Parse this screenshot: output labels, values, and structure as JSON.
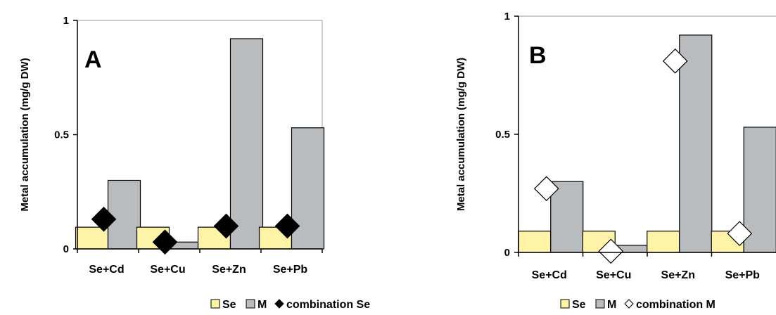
{
  "chart_data": [
    {
      "type": "bar",
      "panel_label": "A",
      "ylabel": "Metal accumulation (mg/g DW)",
      "xlabel": "",
      "ylim": [
        0,
        1
      ],
      "yticks": [
        "0",
        "0.5",
        "1"
      ],
      "categories": [
        "Se+Cd",
        "Se+Cu",
        "Se+Zn",
        "Se+Pb"
      ],
      "series": [
        {
          "name": "Se",
          "type": "bar",
          "color": "#FFF3A8",
          "values": [
            0.095,
            0.095,
            0.095,
            0.095
          ]
        },
        {
          "name": "M",
          "type": "bar",
          "color": "#B9BCBF",
          "values": [
            0.3,
            0.03,
            0.92,
            0.53
          ]
        },
        {
          "name": "combination Se",
          "type": "scatter",
          "marker": "filled-diamond",
          "color": "#000000",
          "values": [
            0.13,
            0.03,
            0.1,
            0.1
          ]
        }
      ],
      "legend": {
        "placement": "bottom",
        "entries": [
          "Se",
          "M",
          "combination Se"
        ]
      }
    },
    {
      "type": "bar",
      "panel_label": "B",
      "ylabel": "Metal accumulation (mg/g DW)",
      "xlabel": "",
      "ylim": [
        0,
        1
      ],
      "yticks": [
        "0",
        "0.5",
        "1"
      ],
      "categories": [
        "Se+Cd",
        "Se+Cu",
        "Se+Zn",
        "Se+Pb"
      ],
      "series": [
        {
          "name": "Se",
          "type": "bar",
          "color": "#FFF3A8",
          "values": [
            0.09,
            0.09,
            0.09,
            0.09
          ]
        },
        {
          "name": "M",
          "type": "bar",
          "color": "#B9BCBF",
          "values": [
            0.3,
            0.03,
            0.92,
            0.53
          ]
        },
        {
          "name": "combination M",
          "type": "scatter",
          "marker": "open-diamond",
          "color": "#FFFFFF",
          "values": [
            0.27,
            0.005,
            0.81,
            0.08
          ]
        }
      ],
      "legend": {
        "placement": "bottom",
        "entries": [
          "Se",
          "M",
          "combination M"
        ]
      }
    }
  ]
}
